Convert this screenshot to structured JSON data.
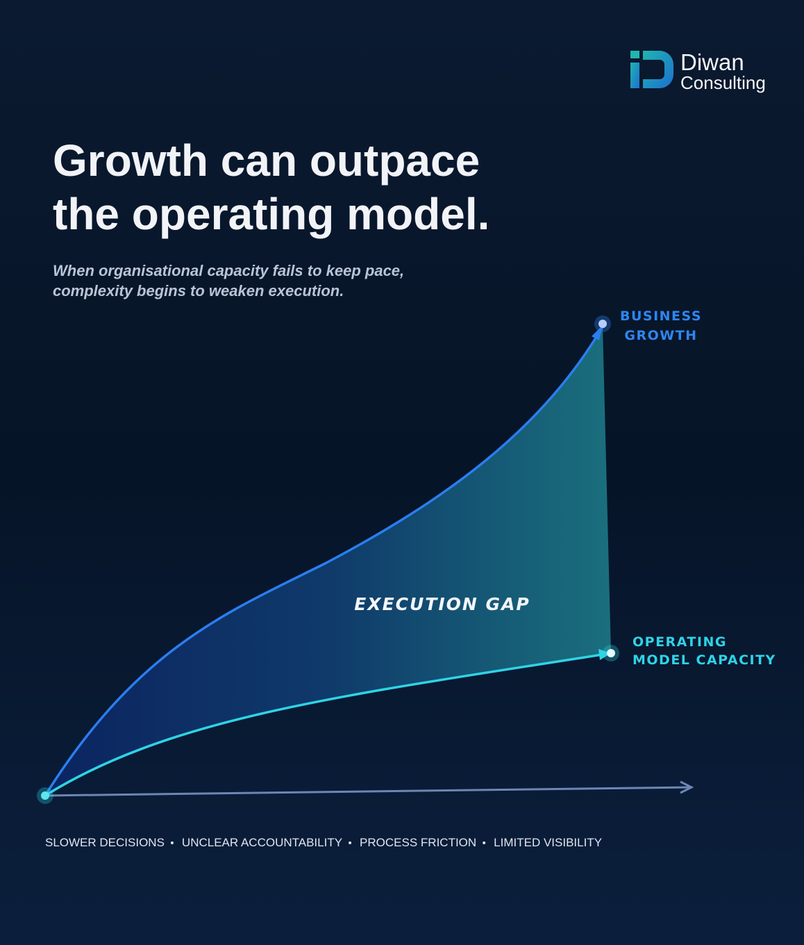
{
  "logo": {
    "name": "Diwan",
    "tagline": "Consulting"
  },
  "header": {
    "title": [
      "Growth can outpace",
      "the operating model."
    ],
    "subtitle": [
      "When organisational capacity fails to keep pace,",
      "complexity begins to weaken execution."
    ]
  },
  "diagram": {
    "upper_label": [
      "BUSINESS",
      "GROWTH"
    ],
    "lower_label": [
      "OPERATING",
      "MODEL CAPACITY"
    ],
    "gap_label": "EXECUTION GAP"
  },
  "footer": {
    "items": [
      "SLOWER DECISIONS",
      "UNCLEAR ACCOUNTABILITY",
      "PROCESS FRICTION",
      "LIMITED VISIBILITY"
    ]
  }
}
